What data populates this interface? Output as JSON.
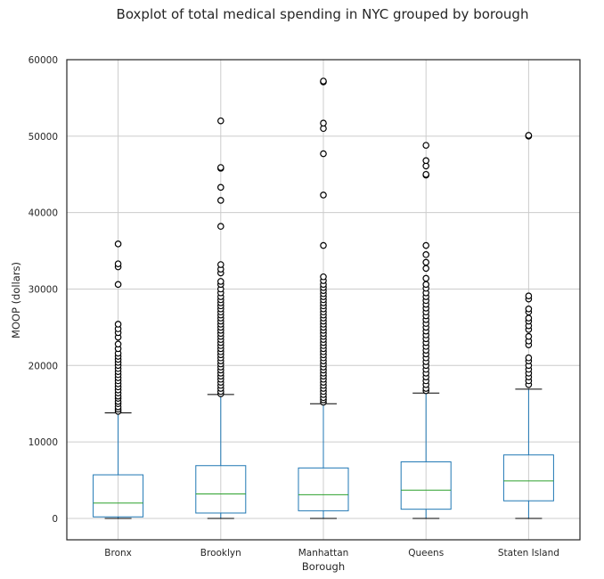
{
  "chart_data": {
    "type": "boxplot",
    "title": "Boxplot of total medical spending in NYC grouped by borough",
    "xlabel": "Borough",
    "ylabel": "MOOP (dollars)",
    "ylim": [
      -2800,
      60000
    ],
    "yticks": [
      0,
      10000,
      20000,
      30000,
      40000,
      50000,
      60000
    ],
    "grid": true,
    "colors": {
      "box": "#1f77b4",
      "median": "#2ca02c",
      "whisker": "#1f77b4",
      "cap": "#000000",
      "outlier": "#000000",
      "grid": "#cccccc"
    },
    "categories": [
      "Bronx",
      "Brooklyn",
      "Manhattan",
      "Queens",
      "Staten Island"
    ],
    "boxes": [
      {
        "name": "Bronx",
        "whisker_low": 0,
        "q1": 200,
        "median": 2000,
        "q3": 5700,
        "whisker_high": 13800,
        "outliers": [
          14000,
          14300,
          14600,
          15000,
          15300,
          15700,
          16000,
          16400,
          16800,
          17200,
          17600,
          18000,
          18400,
          18800,
          19200,
          19600,
          20000,
          20400,
          20800,
          21200,
          21600,
          22200,
          22800,
          23700,
          24300,
          24800,
          25400,
          30600,
          32900,
          33300,
          35900
        ]
      },
      {
        "name": "Brooklyn",
        "whisker_low": 0,
        "q1": 700,
        "median": 3200,
        "q3": 6900,
        "whisker_high": 16200,
        "outliers": [
          16300,
          16600,
          17000,
          17400,
          17800,
          18200,
          18600,
          19000,
          19400,
          19800,
          20200,
          20600,
          21000,
          21400,
          21800,
          22200,
          22600,
          23000,
          23400,
          23800,
          24200,
          24600,
          25000,
          25400,
          25800,
          26200,
          26600,
          27000,
          27400,
          27800,
          28200,
          28600,
          29000,
          29500,
          30000,
          30600,
          31000,
          32100,
          32600,
          33200,
          38200,
          41600,
          43300,
          45800,
          45900,
          52000
        ]
      },
      {
        "name": "Manhattan",
        "whisker_low": 0,
        "q1": 1000,
        "median": 3100,
        "q3": 6600,
        "whisker_high": 15000,
        "outliers": [
          15200,
          15500,
          15800,
          16200,
          16600,
          17000,
          17400,
          17800,
          18200,
          18600,
          19000,
          19400,
          19800,
          20200,
          20600,
          21000,
          21400,
          21800,
          22200,
          22600,
          23000,
          23400,
          23800,
          24200,
          24600,
          25000,
          25400,
          25800,
          26200,
          26600,
          27000,
          27400,
          27800,
          28200,
          28600,
          29000,
          29400,
          29800,
          30200,
          30600,
          31100,
          31600,
          35700,
          42300,
          47700,
          51000,
          51700,
          57100,
          57200
        ]
      },
      {
        "name": "Queens",
        "whisker_low": 0,
        "q1": 1200,
        "median": 3700,
        "q3": 7400,
        "whisker_high": 16400,
        "outliers": [
          16700,
          17000,
          17500,
          18000,
          18500,
          19000,
          19500,
          20000,
          20500,
          21000,
          21500,
          22000,
          22500,
          23000,
          23500,
          24000,
          24500,
          25000,
          25500,
          26000,
          26500,
          27000,
          27500,
          28000,
          28500,
          29000,
          29500,
          30100,
          30600,
          31400,
          32700,
          33500,
          34500,
          35700,
          44900,
          45000,
          46100,
          46800,
          48800
        ]
      },
      {
        "name": "Staten Island",
        "whisker_low": 0,
        "q1": 2300,
        "median": 4900,
        "q3": 8300,
        "whisker_high": 16900,
        "outliers": [
          17500,
          18000,
          18500,
          19000,
          19500,
          20000,
          20600,
          21000,
          22700,
          23200,
          23800,
          24700,
          25200,
          25800,
          26200,
          27000,
          27400,
          28700,
          29100,
          50000,
          50100
        ]
      }
    ]
  }
}
